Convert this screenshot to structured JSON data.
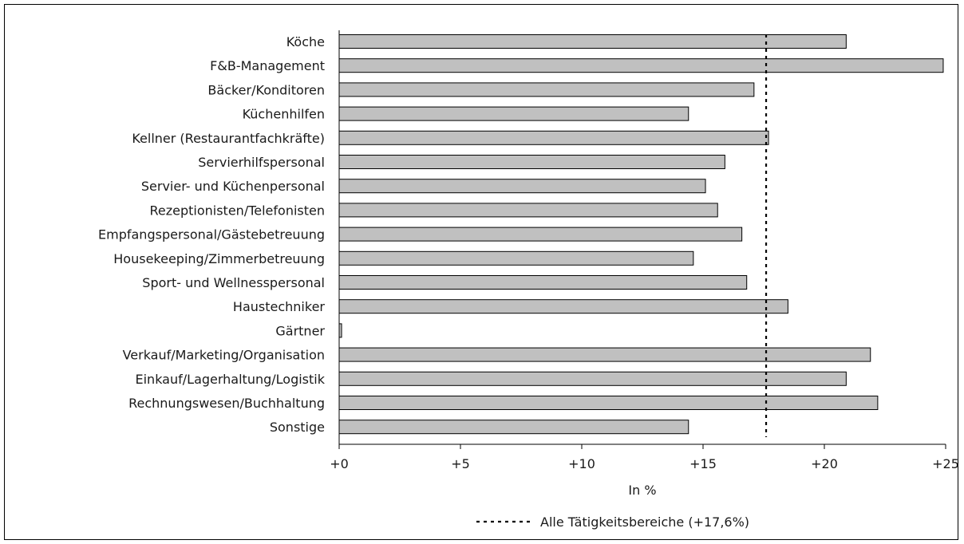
{
  "chart_data": {
    "type": "bar",
    "orientation": "horizontal",
    "categories": [
      "Köche",
      "F&B-Management",
      "Bäcker/Konditoren",
      "Küchenhilfen",
      "Kellner (Restaurantfachkräfte)",
      "Servierhilfspersonal",
      "Servier- und Küchenpersonal",
      "Rezeptionisten/Telefonisten",
      "Empfangspersonal/Gästebetreuung",
      "Housekeeping/Zimmerbetreuung",
      "Sport- und Wellnesspersonal",
      "Haustechniker",
      "Gärtner",
      "Verkauf/Marketing/Organisation",
      "Einkauf/Lagerhaltung/Logistik",
      "Rechnungswesen/Buchhaltung",
      "Sonstige"
    ],
    "values": [
      20.9,
      24.9,
      17.1,
      14.4,
      17.7,
      15.9,
      15.1,
      15.6,
      16.6,
      14.6,
      16.8,
      18.5,
      0.1,
      21.9,
      20.9,
      22.2,
      14.4
    ],
    "reference_line": {
      "value": 17.6,
      "label": "Alle Tätigkeitsbereiche (+17,6%)"
    },
    "xlabel": "In %",
    "xlim": [
      0,
      25
    ],
    "xticks": [
      0,
      5,
      10,
      15,
      20,
      25
    ],
    "xtick_labels": [
      "+0",
      "+5",
      "+10",
      "+15",
      "+20",
      "+25"
    ],
    "grid": false,
    "legend_position": "bottom",
    "bar_color": "#c0c0c0",
    "bar_edge_color": "#000000"
  }
}
